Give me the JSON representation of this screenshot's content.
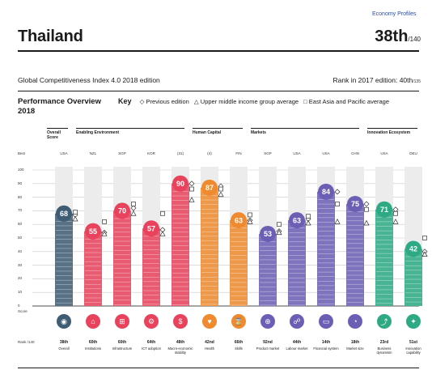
{
  "header": {
    "econ_profiles": "Economy Profiles",
    "country": "Thailand",
    "rank": "38th",
    "rank_of": "/140",
    "edition": "Global Competitiveness Index 4.0 2018 edition",
    "rank_prev_text": "Rank in 2017 edition: 40th",
    "rank_prev_of": "/135"
  },
  "overview": {
    "title_line1": "Performance Overview",
    "title_line2": "2018",
    "legend_key": "Key",
    "legend_prev": "◇ Previous edition",
    "legend_group": "△ Upper middle income group average",
    "legend_region": "□ East Asia and Pacific average"
  },
  "side_labels": {
    "best": "Best",
    "score": "Score",
    "rank": "Rank /140"
  },
  "groups": [
    {
      "label": "Overall Score",
      "span": [
        0,
        0
      ]
    },
    {
      "label": "Enabling Environment",
      "span": [
        1,
        4
      ]
    },
    {
      "label": "Human Capital",
      "span": [
        5,
        6
      ]
    },
    {
      "label": "Markets",
      "span": [
        7,
        10
      ]
    },
    {
      "label": "Innovation Ecosystem",
      "span": [
        11,
        12
      ]
    }
  ],
  "icons": [
    "overall-icon",
    "institutions-icon",
    "infrastructure-icon",
    "ict-icon",
    "macro-icon",
    "health-icon",
    "skills-icon",
    "product-market-icon",
    "labour-market-icon",
    "financial-system-icon",
    "market-size-icon",
    "business-dynamism-icon",
    "innovation-icon"
  ],
  "icon_glyphs": [
    "◉",
    "⌂",
    "⊞",
    "⚙",
    "$",
    "♥",
    "⌛",
    "⊕",
    "☍",
    "▭",
    "◔",
    "⤴",
    "✦"
  ],
  "chart_data": {
    "type": "bar",
    "ylim": [
      0,
      100
    ],
    "yticks": [
      0,
      10,
      20,
      30,
      40,
      50,
      60,
      70,
      80,
      90,
      100
    ],
    "pillars": [
      {
        "pillar": "Overall",
        "rank": "38th",
        "score": 68,
        "best": "USA",
        "color": "#3e5c73",
        "prev": 67,
        "group_avg": 64,
        "region_avg": 69
      },
      {
        "pillar": "Institutions",
        "rank": "60th",
        "score": 55,
        "best": "NZL",
        "color": "#e8425c",
        "prev": 54,
        "group_avg": 53,
        "region_avg": 62
      },
      {
        "pillar": "Infrastructure",
        "rank": "60th",
        "score": 70,
        "best": "SGP",
        "color": "#e8425c",
        "prev": 72,
        "group_avg": 68,
        "region_avg": 75
      },
      {
        "pillar": "ICT adoption",
        "rank": "64th",
        "score": 57,
        "best": "KOR",
        "color": "#e8425c",
        "prev": 56,
        "group_avg": 53,
        "region_avg": 68
      },
      {
        "pillar": "Macro-economic stability",
        "rank": "48th",
        "score": 90,
        "best": "(31)",
        "color": "#e8425c",
        "prev": 90,
        "group_avg": 78,
        "region_avg": 86
      },
      {
        "pillar": "Health",
        "rank": "42nd",
        "score": 87,
        "best": "(4)",
        "color": "#ef8a2e",
        "prev": 88,
        "group_avg": 82,
        "region_avg": 86
      },
      {
        "pillar": "Skills",
        "rank": "66th",
        "score": 63,
        "best": "FIN",
        "color": "#ef8a2e",
        "prev": 63,
        "group_avg": 62,
        "region_avg": 67
      },
      {
        "pillar": "Product market",
        "rank": "92nd",
        "score": 53,
        "best": "SGP",
        "color": "#6b5fb5",
        "prev": 55,
        "group_avg": 54,
        "region_avg": 60
      },
      {
        "pillar": "Labour market",
        "rank": "44th",
        "score": 63,
        "best": "USA",
        "color": "#6b5fb5",
        "prev": 64,
        "group_avg": 61,
        "region_avg": 66
      },
      {
        "pillar": "Financial system",
        "rank": "14th",
        "score": 84,
        "best": "USA",
        "color": "#6b5fb5",
        "prev": 84,
        "group_avg": 62,
        "region_avg": 75
      },
      {
        "pillar": "Market size",
        "rank": "18th",
        "score": 75,
        "best": "CHN",
        "color": "#6b5fb5",
        "prev": 75,
        "group_avg": 61,
        "region_avg": 71
      },
      {
        "pillar": "Business dynamism",
        "rank": "23rd",
        "score": 71,
        "best": "USA",
        "color": "#2daa84",
        "prev": 71,
        "group_avg": 62,
        "region_avg": 68
      },
      {
        "pillar": "Innovation capability",
        "rank": "51st",
        "score": 42,
        "best": "DEU",
        "color": "#2daa84",
        "prev": 40,
        "group_avg": 38,
        "region_avg": 50
      }
    ]
  }
}
